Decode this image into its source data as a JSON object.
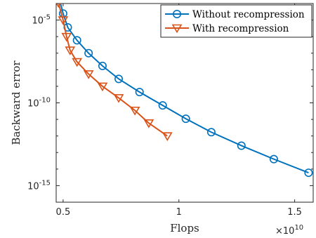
{
  "chart_data": {
    "type": "line",
    "title": "",
    "xlabel": "Flops",
    "ylabel": "Backward error",
    "x_exponent_label": "×10",
    "x_exponent_power": "10",
    "x_scale": 10000000000.0,
    "xlim": [
      4700000000.0,
      15800000000.0
    ],
    "ylim": [
      1e-16,
      0.0001
    ],
    "yscale": "log",
    "xticks": [
      5000000000.0,
      10000000000.0,
      15000000000.0
    ],
    "xtick_labels": [
      "0.5",
      "1",
      "1.5"
    ],
    "yticks": [
      1e-05,
      1e-10,
      1e-15
    ],
    "ytick_labels": [
      "10-5",
      "10-10",
      "10-15"
    ],
    "ytick_parts": [
      {
        "base": "10",
        "exp": "-5"
      },
      {
        "base": "10",
        "exp": "-10"
      },
      {
        "base": "10",
        "exp": "-15"
      }
    ],
    "grid": false,
    "legend_position": "top-right",
    "series": [
      {
        "name": "Without recompression",
        "color": "#0072BD",
        "marker": "circle",
        "points": [
          [
            4800000000.0,
            0.0003
          ],
          [
            5000000000.0,
            2.5e-05
          ],
          [
            5200000000.0,
            3.6e-06
          ],
          [
            5600000000.0,
            6e-07
          ],
          [
            6100000000.0,
            1e-07
          ],
          [
            6700000000.0,
            1.7e-08
          ],
          [
            7400000000.0,
            2.8e-09
          ],
          [
            8300000000.0,
            4.5e-10
          ],
          [
            9300000000.0,
            7e-11
          ],
          [
            10300000000.0,
            1.1e-11
          ],
          [
            11400000000.0,
            1.7e-12
          ],
          [
            12700000000.0,
            2.6e-13
          ],
          [
            14100000000.0,
            4e-14
          ],
          [
            15600000000.0,
            6e-15
          ]
        ]
      },
      {
        "name": "With recompression",
        "color": "#D95319",
        "marker": "triangle-down",
        "points": [
          [
            4800000000.0,
            0.00011
          ],
          [
            5000000000.0,
            1e-05
          ],
          [
            5150000000.0,
            1e-06
          ],
          [
            5300000000.0,
            1.5e-07
          ],
          [
            5600000000.0,
            3e-08
          ],
          [
            6100000000.0,
            5.5e-09
          ],
          [
            6700000000.0,
            1e-09
          ],
          [
            7400000000.0,
            2e-10
          ],
          [
            8100000000.0,
            3.5e-11
          ],
          [
            8700000000.0,
            6e-12
          ],
          [
            9500000000.0,
            1e-12
          ]
        ]
      }
    ]
  }
}
